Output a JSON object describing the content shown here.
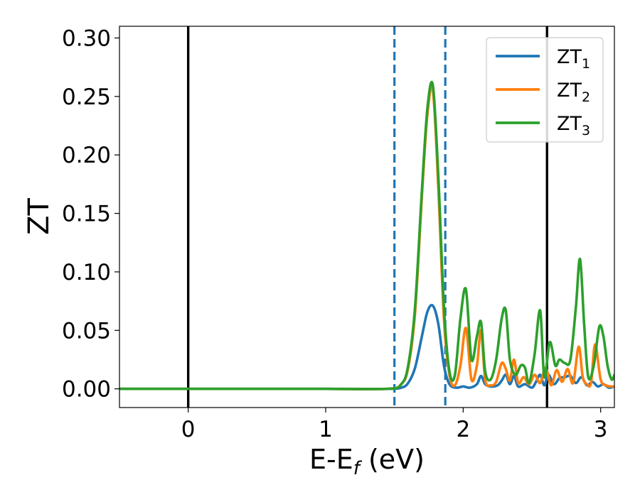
{
  "chart_data": {
    "type": "line",
    "xlabel": {
      "base": "E-E",
      "sub": "f",
      "suffix": " (eV)"
    },
    "ylabel": "ZT",
    "xlim": [
      -0.5,
      3.1
    ],
    "ylim": [
      -0.016,
      0.31
    ],
    "xticks": [
      0,
      1,
      2,
      3
    ],
    "xtick_labels": [
      "0",
      "1",
      "2",
      "3"
    ],
    "yticks": [
      0.0,
      0.05,
      0.1,
      0.15,
      0.2,
      0.25,
      0.3
    ],
    "ytick_labels": [
      "0.00",
      "0.05",
      "0.10",
      "0.15",
      "0.20",
      "0.25",
      "0.30"
    ],
    "grid": false,
    "legend_position": "top-right",
    "vertical_lines": [
      {
        "x": 0.0,
        "style": "solid",
        "color": "#000000"
      },
      {
        "x": 1.5,
        "style": "dashed",
        "color": "#1f77b4"
      },
      {
        "x": 1.87,
        "style": "dashed",
        "color": "#1f77b4"
      },
      {
        "x": 2.61,
        "style": "solid",
        "color": "#000000"
      }
    ],
    "series": [
      {
        "name": "ZT",
        "name_sub": "1",
        "color": "#1f77b4",
        "x": [
          -0.5,
          0.0,
          0.5,
          1.0,
          1.45,
          1.55,
          1.6,
          1.65,
          1.7,
          1.74,
          1.78,
          1.82,
          1.86,
          1.9,
          1.95,
          2.0,
          2.05,
          2.1,
          2.13,
          2.16,
          2.2,
          2.25,
          2.28,
          2.31,
          2.34,
          2.37,
          2.4,
          2.45,
          2.5,
          2.53,
          2.56,
          2.59,
          2.62,
          2.66,
          2.7,
          2.74,
          2.78,
          2.82,
          2.86,
          2.9,
          2.94,
          2.98,
          3.02,
          3.06,
          3.1
        ],
        "y": [
          0,
          0,
          0,
          0,
          0.0,
          0.001,
          0.005,
          0.018,
          0.045,
          0.066,
          0.071,
          0.055,
          0.02,
          0.004,
          0.001,
          0.002,
          0.001,
          0.004,
          0.011,
          0.004,
          0.002,
          0.003,
          0.007,
          0.012,
          0.004,
          0.011,
          0.002,
          0.004,
          0.001,
          0.006,
          0.012,
          0.003,
          0.012,
          0.004,
          0.009,
          0.01,
          0.011,
          0.005,
          0.01,
          0.003,
          0.006,
          0.002,
          0.004,
          0.001,
          0.002
        ]
      },
      {
        "name": "ZT",
        "name_sub": "2",
        "color": "#ff7f0e",
        "x": [
          -0.5,
          0.0,
          0.5,
          1.0,
          1.45,
          1.55,
          1.6,
          1.65,
          1.7,
          1.74,
          1.78,
          1.82,
          1.86,
          1.9,
          1.94,
          1.98,
          2.02,
          2.06,
          2.1,
          2.13,
          2.16,
          2.2,
          2.24,
          2.28,
          2.31,
          2.34,
          2.37,
          2.4,
          2.44,
          2.48,
          2.52,
          2.56,
          2.6,
          2.64,
          2.68,
          2.72,
          2.76,
          2.8,
          2.84,
          2.87,
          2.9,
          2.93,
          2.96,
          3.0,
          3.04,
          3.08,
          3.1
        ],
        "y": [
          0,
          0,
          0,
          0,
          0.0,
          0.004,
          0.018,
          0.065,
          0.165,
          0.235,
          0.255,
          0.17,
          0.06,
          0.012,
          0.003,
          0.02,
          0.052,
          0.008,
          0.02,
          0.05,
          0.008,
          0.003,
          0.006,
          0.022,
          0.017,
          0.007,
          0.025,
          0.005,
          0.01,
          0.004,
          0.012,
          0.005,
          0.018,
          0.003,
          0.016,
          0.006,
          0.017,
          0.005,
          0.036,
          0.01,
          0.004,
          0.005,
          0.038,
          0.008,
          0.003,
          0.002,
          0.002
        ]
      },
      {
        "name": "ZT",
        "name_sub": "3",
        "color": "#2ca02c",
        "x": [
          -0.5,
          0.0,
          0.5,
          1.0,
          1.45,
          1.55,
          1.6,
          1.65,
          1.7,
          1.74,
          1.78,
          1.82,
          1.86,
          1.9,
          1.94,
          1.98,
          2.02,
          2.06,
          2.1,
          2.13,
          2.16,
          2.2,
          2.24,
          2.28,
          2.31,
          2.34,
          2.38,
          2.42,
          2.45,
          2.48,
          2.52,
          2.56,
          2.59,
          2.63,
          2.67,
          2.7,
          2.74,
          2.78,
          2.82,
          2.85,
          2.88,
          2.91,
          2.95,
          2.99,
          3.02,
          3.05,
          3.08,
          3.1
        ],
        "y": [
          0,
          0,
          0,
          0,
          0.0,
          0.004,
          0.02,
          0.07,
          0.17,
          0.24,
          0.259,
          0.18,
          0.07,
          0.015,
          0.012,
          0.06,
          0.085,
          0.025,
          0.045,
          0.057,
          0.015,
          0.008,
          0.025,
          0.06,
          0.067,
          0.025,
          0.012,
          0.02,
          0.018,
          0.005,
          0.03,
          0.067,
          0.01,
          0.04,
          0.02,
          0.025,
          0.022,
          0.025,
          0.07,
          0.111,
          0.055,
          0.01,
          0.02,
          0.053,
          0.045,
          0.02,
          0.008,
          0.012
        ]
      }
    ]
  }
}
